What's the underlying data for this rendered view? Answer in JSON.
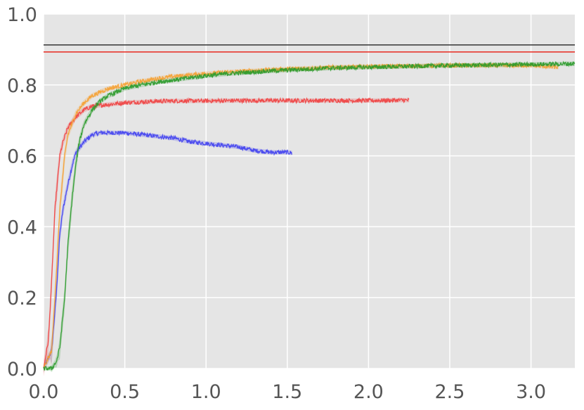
{
  "chart_data": {
    "type": "line",
    "title": "",
    "xlabel": "",
    "ylabel": "",
    "xlim": [
      0.0,
      3.27
    ],
    "ylim": [
      0.0,
      1.0
    ],
    "grid": true,
    "background_color": "#e5e5e5",
    "grid_color": "#ffffff",
    "x_ticks": [
      0.0,
      0.5,
      1.0,
      1.5,
      2.0,
      2.5,
      3.0
    ],
    "x_tick_labels": [
      "0.0",
      "0.5",
      "1.0",
      "1.5",
      "2.0",
      "2.5",
      "3.0"
    ],
    "y_ticks": [
      0.0,
      0.2,
      0.4,
      0.6,
      0.8,
      1.0
    ],
    "y_tick_labels": [
      "0.0",
      "0.2",
      "0.4",
      "0.6",
      "0.8",
      "1.0"
    ],
    "reference_lines": [
      {
        "y": 0.913,
        "color": "#333333"
      },
      {
        "y": 0.893,
        "color": "#e8281f"
      }
    ],
    "series": [
      {
        "color": "#4040f0",
        "x": [
          0.0,
          0.05,
          0.08,
          0.1,
          0.12,
          0.15,
          0.18,
          0.2,
          0.25,
          0.3,
          0.35,
          0.4,
          0.45,
          0.5,
          0.6,
          0.7,
          0.8,
          0.9,
          1.0,
          1.1,
          1.2,
          1.3,
          1.4,
          1.5,
          1.53
        ],
        "y": [
          0.0,
          0.05,
          0.22,
          0.38,
          0.45,
          0.52,
          0.58,
          0.61,
          0.64,
          0.66,
          0.665,
          0.665,
          0.665,
          0.665,
          0.66,
          0.655,
          0.65,
          0.64,
          0.635,
          0.63,
          0.625,
          0.615,
          0.61,
          0.61,
          0.608
        ]
      },
      {
        "color": "#f04040",
        "x": [
          0.0,
          0.03,
          0.05,
          0.07,
          0.1,
          0.12,
          0.15,
          0.2,
          0.25,
          0.3,
          0.4,
          0.5,
          0.6,
          0.7,
          0.8,
          1.0,
          1.2,
          1.4,
          1.6,
          1.8,
          2.0,
          2.2,
          2.25
        ],
        "y": [
          0.0,
          0.08,
          0.25,
          0.45,
          0.6,
          0.64,
          0.68,
          0.71,
          0.73,
          0.74,
          0.745,
          0.75,
          0.752,
          0.754,
          0.755,
          0.755,
          0.756,
          0.756,
          0.756,
          0.756,
          0.756,
          0.757,
          0.757
        ]
      },
      {
        "color": "#f5a030",
        "x": [
          0.0,
          0.05,
          0.08,
          0.1,
          0.13,
          0.15,
          0.2,
          0.25,
          0.3,
          0.4,
          0.5,
          0.6,
          0.7,
          0.8,
          1.0,
          1.2,
          1.5,
          1.8,
          2.0,
          2.5,
          3.0,
          3.17
        ],
        "y": [
          0.0,
          0.05,
          0.28,
          0.45,
          0.6,
          0.66,
          0.72,
          0.75,
          0.77,
          0.79,
          0.8,
          0.81,
          0.818,
          0.824,
          0.832,
          0.838,
          0.845,
          0.85,
          0.852,
          0.855,
          0.855,
          0.85
        ]
      },
      {
        "color": "#2a9a2a",
        "x": [
          0.0,
          0.05,
          0.08,
          0.1,
          0.13,
          0.15,
          0.18,
          0.2,
          0.22,
          0.25,
          0.3,
          0.35,
          0.4,
          0.5,
          0.6,
          0.7,
          0.8,
          0.9,
          1.0,
          1.2,
          1.5,
          1.8,
          2.0,
          2.5,
          3.0,
          3.27
        ],
        "y": [
          0.0,
          0.0,
          0.02,
          0.06,
          0.2,
          0.35,
          0.5,
          0.58,
          0.64,
          0.69,
          0.73,
          0.755,
          0.77,
          0.79,
          0.8,
          0.808,
          0.814,
          0.82,
          0.826,
          0.834,
          0.842,
          0.848,
          0.85,
          0.855,
          0.858,
          0.86
        ]
      }
    ]
  }
}
